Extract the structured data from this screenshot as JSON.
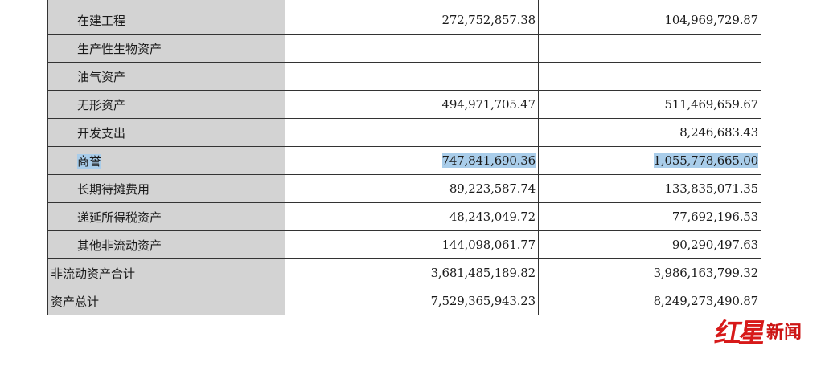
{
  "rows": [
    {
      "label": "",
      "current": "",
      "previous": ""
    },
    {
      "label": "在建工程",
      "current": "272,752,857.38",
      "previous": "104,969,729.87"
    },
    {
      "label": "生产性生物资产",
      "current": "",
      "previous": ""
    },
    {
      "label": "油气资产",
      "current": "",
      "previous": ""
    },
    {
      "label": "无形资产",
      "current": "494,971,705.47",
      "previous": "511,469,659.67"
    },
    {
      "label": "开发支出",
      "current": "",
      "previous": "8,246,683.43"
    },
    {
      "label": "商誉",
      "current": "747,841,690.36",
      "previous": "1,055,778,665.00"
    },
    {
      "label": "长期待摊费用",
      "current": "89,223,587.74",
      "previous": "133,835,071.35"
    },
    {
      "label": "递延所得税资产",
      "current": "48,243,049.72",
      "previous": "77,692,196.53"
    },
    {
      "label": "其他非流动资产",
      "current": "144,098,061.77",
      "previous": "90,290,497.63"
    },
    {
      "label": "非流动资产合计",
      "current": "3,681,485,189.82",
      "previous": "3,986,163,799.32"
    },
    {
      "label": "资产总计",
      "current": "7,529,365,943.23",
      "previous": "8,249,273,490.87"
    }
  ],
  "watermark": {
    "logo": "红星",
    "text": "新闻",
    "color": "#d71a1a"
  },
  "highlight_color": "#a9cdea"
}
